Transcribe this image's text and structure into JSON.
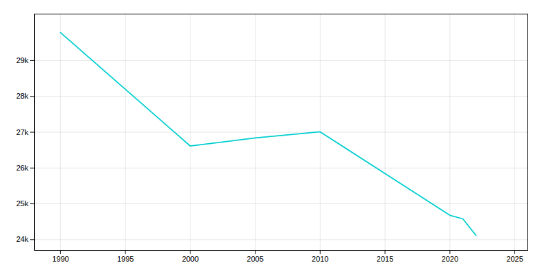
{
  "chart_data": {
    "type": "line",
    "x": [
      1990,
      2000,
      2005,
      2010,
      2020,
      2021,
      2022
    ],
    "values": [
      29780,
      26613,
      26840,
      27010,
      24680,
      24580,
      24120
    ],
    "color": "#00CED1",
    "xlim": [
      1988,
      2026
    ],
    "ylim": [
      23700,
      30300
    ],
    "xticks": [
      1990,
      1995,
      2000,
      2005,
      2010,
      2015,
      2020,
      2025
    ],
    "yticks": [
      {
        "value": 24000,
        "label": "24k"
      },
      {
        "value": 25000,
        "label": "25k"
      },
      {
        "value": 26000,
        "label": "26k"
      },
      {
        "value": 27000,
        "label": "27k"
      },
      {
        "value": 28000,
        "label": "28k"
      },
      {
        "value": 29000,
        "label": "29k"
      }
    ],
    "grid": true
  }
}
